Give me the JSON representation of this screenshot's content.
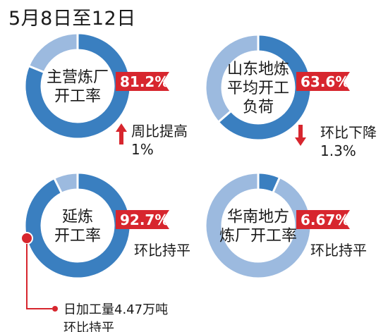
{
  "title": "5月8日至12日",
  "colors": {
    "ring_dark": "#3a7fc0",
    "ring_light": "#9cbadf",
    "badge": "#d7262e",
    "badge_text": "#ffffff",
    "arrow": "#d7262e",
    "connector": "#d7262e"
  },
  "chart_data": [
    {
      "type": "pie",
      "label_lines": [
        "主营炼厂",
        "开工率"
      ],
      "value": 81.2,
      "value_label": "81.2%",
      "note_arrow": "up",
      "note_lines": [
        "周比提高",
        "1%"
      ]
    },
    {
      "type": "pie",
      "label_lines": [
        "山东地炼",
        "平均开工",
        "负荷"
      ],
      "value": 63.6,
      "value_label": "63.6%",
      "note_arrow": "down",
      "note_lines": [
        "环比下降",
        "1.3%"
      ]
    },
    {
      "type": "pie",
      "label_lines": [
        "延炼",
        "开工率"
      ],
      "value": 92.7,
      "value_label": "92.7%",
      "note_arrow": "none",
      "note_lines": [
        "环比持平"
      ],
      "extra_lines": [
        "日加工量4.47万吨",
        "环比持平"
      ]
    },
    {
      "type": "pie",
      "label_lines": [
        "华南地方",
        "炼厂开工率"
      ],
      "value": 6.67,
      "value_label": "6.67%",
      "note_arrow": "none",
      "note_lines": [
        "环比持平"
      ]
    }
  ]
}
